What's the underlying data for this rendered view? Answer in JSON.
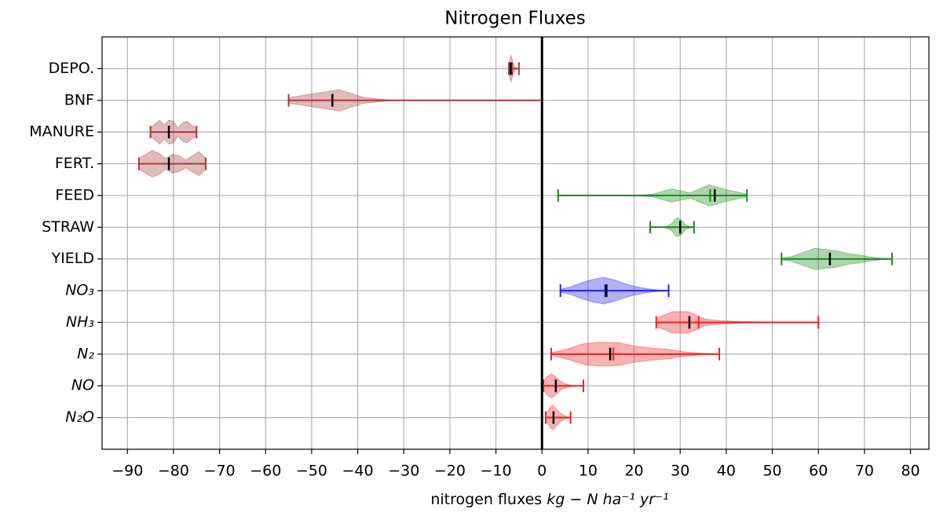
{
  "chart_data": {
    "type": "violin",
    "title": "Nitrogen Fluxes",
    "xlabel": "nitrogen fluxes",
    "xlabel_units": "kg − N ha⁻¹ yr⁻¹",
    "categories": [
      "DEPO.",
      "BNF",
      "MANURE",
      "FERT.",
      "FEED",
      "STRAW",
      "YIELD",
      "NO₃",
      "NH₃",
      "N₂",
      "NO",
      "N₂O"
    ],
    "italic": [
      false,
      false,
      false,
      false,
      false,
      false,
      false,
      true,
      true,
      true,
      true,
      true
    ],
    "xlim": [
      -95.5,
      84
    ],
    "xticks": [
      {
        "value": -90,
        "label": "−90"
      },
      {
        "value": -80,
        "label": "−80"
      },
      {
        "value": -70,
        "label": "−70"
      },
      {
        "value": -60,
        "label": "−60"
      },
      {
        "value": -50,
        "label": "−50"
      },
      {
        "value": -40,
        "label": "−40"
      },
      {
        "value": -30,
        "label": "−30"
      },
      {
        "value": -20,
        "label": "−20"
      },
      {
        "value": -10,
        "label": "−10"
      },
      0,
      10,
      20,
      30,
      40,
      50,
      60,
      70,
      80
    ],
    "grid": true,
    "vline": 0,
    "violins": [
      {
        "color": "#a83a3a",
        "min": -7.2,
        "max": -5,
        "mean": -6.5,
        "median": -6.8,
        "density": [
          0.3,
          1,
          0.5,
          0.1,
          0.02,
          0
        ]
      },
      {
        "color": "#a83a3a",
        "min": -55,
        "max": 0,
        "mean": -45.5,
        "median": -45.5,
        "density": [
          0.2,
          0.5,
          0.8,
          0.2,
          0.02,
          0,
          0,
          0,
          0,
          0,
          0
        ]
      },
      {
        "color": "#a83a3a",
        "min": -85,
        "max": -75,
        "mean": -81,
        "median": -81,
        "density": [
          0.3,
          0.6,
          0.9,
          0.5,
          0.9,
          0.8,
          0.3,
          0.7,
          0.8,
          0.5,
          0.3
        ]
      },
      {
        "color": "#a83a3a",
        "min": -87.5,
        "max": -73,
        "mean": -81,
        "median": -81,
        "density": [
          0.4,
          0.7,
          1,
          0.8,
          0.4,
          0.7,
          0.6,
          0.3,
          0.6,
          0.9,
          0.4
        ]
      },
      {
        "color": "#178a17",
        "min": 3.5,
        "max": 44.5,
        "mean": 36.5,
        "median": 37.5,
        "density": [
          0,
          0,
          0,
          0,
          0,
          0.1,
          0.5,
          0.2,
          0.8,
          0.4,
          0.1
        ]
      },
      {
        "color": "#178a17",
        "min": 23.5,
        "max": 33,
        "mean": 30,
        "median": 30,
        "density": [
          0,
          0,
          0,
          0,
          0.1,
          0.3,
          0.7,
          0.6,
          0.2,
          0.05,
          0
        ]
      },
      {
        "color": "#178a17",
        "min": 52,
        "max": 76,
        "mean": 62.5,
        "median": 62.5,
        "density": [
          0.05,
          0.2,
          0.5,
          0.8,
          0.7,
          0.6,
          0.4,
          0.3,
          0.15,
          0.05,
          0.02
        ]
      },
      {
        "color": "#2020f0",
        "min": 4,
        "max": 27.5,
        "mean": 13.7,
        "median": 14,
        "density": [
          0.1,
          0.3,
          0.6,
          0.85,
          1,
          0.8,
          0.5,
          0.3,
          0.15,
          0.05,
          0.02
        ]
      },
      {
        "color": "#f02020",
        "min": 24.8,
        "max": 60,
        "mean": 34,
        "median": 32,
        "density": [
          0.3,
          0.8,
          0.8,
          0.25,
          0.12,
          0.08,
          0.05,
          0.03,
          0.02,
          0.01,
          0
        ]
      },
      {
        "color": "#f02020",
        "min": 2,
        "max": 38.5,
        "mean": 15.5,
        "median": 14.8,
        "density": [
          0.1,
          0.4,
          0.8,
          0.9,
          0.85,
          0.6,
          0.45,
          0.35,
          0.15,
          0.05,
          0.01
        ]
      },
      {
        "color": "#f02020",
        "min": 0.3,
        "max": 9,
        "mean": 3,
        "median": 3,
        "density": [
          0.3,
          0.7,
          0.9,
          0.7,
          0.4,
          0.2,
          0.1,
          0.05,
          0.02,
          0.01,
          0
        ]
      },
      {
        "color": "#f02020",
        "min": 0.8,
        "max": 6.2,
        "mean": 2.5,
        "median": 2.5,
        "density": [
          0.2,
          0.5,
          0.8,
          0.9,
          0.7,
          0.5,
          0.3,
          0.2,
          0.1,
          0.05,
          0.02
        ]
      }
    ]
  }
}
